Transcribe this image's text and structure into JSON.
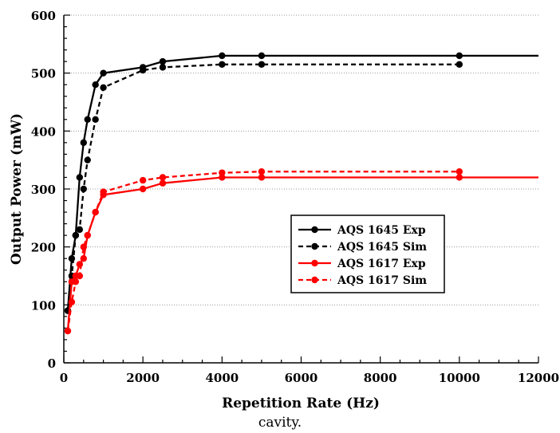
{
  "chart_data": {
    "type": "line",
    "title": "",
    "xlabel": "Repetition Rate (Hz)",
    "ylabel": "Output Power (mW)",
    "xlim": [
      0,
      12000
    ],
    "ylim": [
      0,
      600
    ],
    "x_ticks": [
      0,
      2000,
      4000,
      6000,
      8000,
      10000,
      12000
    ],
    "y_ticks": [
      0,
      100,
      200,
      300,
      400,
      500,
      600
    ],
    "grid": "horizontal dotted",
    "legend_position": "center-right",
    "series": [
      {
        "name": "AQS 1645 Exp",
        "color": "#000000",
        "dash": "solid",
        "x": [
          100,
          200,
          300,
          400,
          500,
          600,
          800,
          1000,
          2000,
          2500,
          4000,
          5000,
          10000
        ],
        "y": [
          90,
          180,
          220,
          320,
          380,
          420,
          480,
          500,
          510,
          520,
          530,
          530,
          530
        ],
        "line_end_x": 12000
      },
      {
        "name": "AQS 1645 Sim",
        "color": "#000000",
        "dash": "dashed",
        "x": [
          100,
          200,
          300,
          400,
          500,
          600,
          800,
          1000,
          2000,
          2500,
          4000,
          5000,
          10000
        ],
        "y": [
          90,
          150,
          220,
          230,
          300,
          350,
          420,
          475,
          505,
          510,
          515,
          515,
          515
        ],
        "line_end_x": null
      },
      {
        "name": "AQS 1617 Exp",
        "color": "#ff0000",
        "dash": "solid",
        "x": [
          100,
          200,
          300,
          400,
          500,
          600,
          800,
          1000,
          2000,
          2500,
          4000,
          5000,
          10000
        ],
        "y": [
          55,
          140,
          150,
          170,
          180,
          220,
          260,
          290,
          300,
          310,
          320,
          320,
          320
        ],
        "line_end_x": 12000
      },
      {
        "name": "AQS 1617 Sim",
        "color": "#ff0000",
        "dash": "dashed",
        "x": [
          100,
          200,
          300,
          400,
          500,
          600,
          800,
          1000,
          2000,
          2500,
          4000,
          5000,
          10000
        ],
        "y": [
          55,
          105,
          140,
          150,
          200,
          220,
          260,
          295,
          315,
          320,
          328,
          330,
          330
        ],
        "line_end_x": null
      }
    ]
  },
  "caption": "cavity."
}
